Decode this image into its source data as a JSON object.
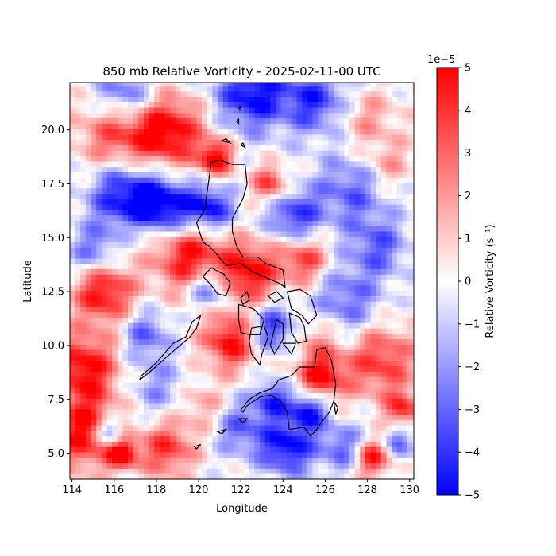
{
  "chart_data": {
    "type": "heatmap",
    "title": "850 mb Relative Vorticity - 2025-02-11-00 UTC",
    "xlabel": "Longitude",
    "ylabel": "Latitude",
    "xlim": [
      113.9,
      130.2
    ],
    "ylim": [
      3.8,
      22.2
    ],
    "x_ticks": [
      114,
      116,
      118,
      120,
      122,
      124,
      126,
      128,
      130
    ],
    "x_tick_labels": [
      "114",
      "116",
      "118",
      "120",
      "122",
      "124",
      "126",
      "128",
      "130"
    ],
    "y_ticks": [
      5.0,
      7.5,
      10.0,
      12.5,
      15.0,
      17.5,
      20.0
    ],
    "y_tick_labels": [
      "5.0",
      "7.5",
      "10.0",
      "12.5",
      "15.0",
      "17.5",
      "20.0"
    ],
    "colorbar": {
      "label": "Relative Vorticity (s⁻¹)",
      "multiplier_label": "1e−5",
      "range": [
        -5,
        5
      ],
      "ticks": [
        5,
        4,
        3,
        2,
        1,
        0,
        -1,
        -2,
        -3,
        -4,
        -5
      ],
      "tick_labels": [
        "5",
        "4",
        "3",
        "2",
        "1",
        "0",
        "−1",
        "−2",
        "−3",
        "−4",
        "−5"
      ],
      "colormap": "bwr",
      "colors": {
        "low": "#0000ff",
        "mid": "#ffffff",
        "high": "#ff0000"
      }
    },
    "grid_step_deg": 0.25,
    "field_features": [
      {
        "lon": 116.2,
        "lat": 19.8,
        "value": 4,
        "sigma": 1.3
      },
      {
        "lon": 118.6,
        "lat": 19.9,
        "value": 5,
        "sigma": 1.2
      },
      {
        "lon": 120.8,
        "lat": 18.7,
        "value": 5,
        "sigma": 0.6
      },
      {
        "lon": 122.5,
        "lat": 21.7,
        "value": -5,
        "sigma": 1.2
      },
      {
        "lon": 125.5,
        "lat": 21.4,
        "value": -4,
        "sigma": 1.1
      },
      {
        "lon": 116.5,
        "lat": 21.6,
        "value": -4,
        "sigma": 1.0
      },
      {
        "lon": 128.0,
        "lat": 20.5,
        "value": 2,
        "sigma": 1.0
      },
      {
        "lon": 116.5,
        "lat": 17.0,
        "value": -5,
        "sigma": 1.2
      },
      {
        "lon": 118.5,
        "lat": 16.4,
        "value": -5,
        "sigma": 1.0
      },
      {
        "lon": 120.5,
        "lat": 16.3,
        "value": -5,
        "sigma": 0.8
      },
      {
        "lon": 123.4,
        "lat": 17.5,
        "value": 4,
        "sigma": 0.6
      },
      {
        "lon": 124.5,
        "lat": 16.0,
        "value": -4,
        "sigma": 0.9
      },
      {
        "lon": 127.2,
        "lat": 17.2,
        "value": -3,
        "sigma": 1.2
      },
      {
        "lon": 129.0,
        "lat": 18.4,
        "value": 2,
        "sigma": 0.8
      },
      {
        "lon": 119.5,
        "lat": 14.3,
        "value": 5,
        "sigma": 1.2
      },
      {
        "lon": 122.4,
        "lat": 13.4,
        "value": 5,
        "sigma": 1.0
      },
      {
        "lon": 125.0,
        "lat": 14.0,
        "value": 4,
        "sigma": 0.8
      },
      {
        "lon": 128.5,
        "lat": 14.6,
        "value": -3,
        "sigma": 1.0
      },
      {
        "lon": 115.0,
        "lat": 14.3,
        "value": -3,
        "sigma": 0.8
      },
      {
        "lon": 115.5,
        "lat": 12.5,
        "value": 5,
        "sigma": 1.0
      },
      {
        "lon": 120.5,
        "lat": 12.6,
        "value": -4,
        "sigma": 0.6
      },
      {
        "lon": 127.0,
        "lat": 12.0,
        "value": -3,
        "sigma": 1.2
      },
      {
        "lon": 114.6,
        "lat": 9.0,
        "value": 5,
        "sigma": 1.1
      },
      {
        "lon": 114.7,
        "lat": 6.0,
        "value": 5,
        "sigma": 1.2
      },
      {
        "lon": 115.8,
        "lat": 6.0,
        "value": -5,
        "sigma": 0.5
      },
      {
        "lon": 116.4,
        "lat": 5.0,
        "value": 5,
        "sigma": 0.5
      },
      {
        "lon": 117.5,
        "lat": 10.5,
        "value": -3,
        "sigma": 0.8
      },
      {
        "lon": 121.5,
        "lat": 10.2,
        "value": 5,
        "sigma": 0.9
      },
      {
        "lon": 123.5,
        "lat": 10.8,
        "value": -4,
        "sigma": 0.8
      },
      {
        "lon": 125.5,
        "lat": 10.5,
        "value": 2,
        "sigma": 0.8
      },
      {
        "lon": 125.8,
        "lat": 8.6,
        "value": 5,
        "sigma": 0.8
      },
      {
        "lon": 128.6,
        "lat": 9.3,
        "value": 4,
        "sigma": 1.2
      },
      {
        "lon": 129.7,
        "lat": 7.0,
        "value": 4,
        "sigma": 0.6
      },
      {
        "lon": 129.5,
        "lat": 5.5,
        "value": -3,
        "sigma": 0.6
      },
      {
        "lon": 124.2,
        "lat": 5.3,
        "value": -5,
        "sigma": 0.9
      },
      {
        "lon": 126.8,
        "lat": 5.3,
        "value": -3,
        "sigma": 0.8
      },
      {
        "lon": 128.3,
        "lat": 4.8,
        "value": 5,
        "sigma": 0.6
      },
      {
        "lon": 122.0,
        "lat": 6.2,
        "value": -3,
        "sigma": 0.9
      },
      {
        "lon": 118.5,
        "lat": 5.2,
        "value": 4,
        "sigma": 0.9
      },
      {
        "lon": 118.0,
        "lat": 8.0,
        "value": -2,
        "sigma": 1.0
      },
      {
        "lon": 120.2,
        "lat": 7.2,
        "value": 2,
        "sigma": 0.8
      },
      {
        "lon": 123.5,
        "lat": 7.5,
        "value": -4,
        "sigma": 0.6
      },
      {
        "lon": 125.2,
        "lat": 7.0,
        "value": -5,
        "sigma": 0.6
      },
      {
        "lon": 117.0,
        "lat": 15.2,
        "value": 1,
        "sigma": 0.6
      }
    ],
    "coastlines": [
      [
        [
          120.6,
          18.5
        ],
        [
          121.0,
          18.6
        ],
        [
          121.6,
          18.4
        ],
        [
          122.2,
          18.4
        ],
        [
          122.3,
          17.5
        ],
        [
          122.1,
          16.8
        ],
        [
          121.6,
          15.9
        ],
        [
          121.6,
          15.3
        ],
        [
          121.8,
          14.6
        ],
        [
          122.1,
          14.1
        ],
        [
          122.8,
          14.1
        ],
        [
          123.2,
          13.8
        ],
        [
          124.0,
          13.5
        ],
        [
          124.1,
          12.7
        ],
        [
          123.8,
          12.9
        ],
        [
          123.3,
          13.1
        ],
        [
          122.6,
          13.4
        ],
        [
          122.0,
          13.8
        ],
        [
          121.3,
          13.7
        ],
        [
          120.8,
          14.3
        ],
        [
          120.5,
          14.6
        ],
        [
          120.2,
          14.8
        ],
        [
          119.9,
          15.7
        ],
        [
          120.3,
          16.3
        ],
        [
          120.4,
          17.1
        ],
        [
          120.6,
          18.5
        ]
      ],
      [
        [
          121.9,
          21.0
        ],
        [
          122.0,
          21.1
        ],
        [
          122.0,
          20.9
        ],
        [
          121.9,
          21.0
        ]
      ],
      [
        [
          121.8,
          20.4
        ],
        [
          121.9,
          20.5
        ],
        [
          121.9,
          20.3
        ],
        [
          121.8,
          20.4
        ]
      ],
      [
        [
          121.1,
          19.5
        ],
        [
          121.3,
          19.6
        ],
        [
          121.5,
          19.4
        ],
        [
          121.1,
          19.5
        ]
      ],
      [
        [
          122.0,
          19.3
        ],
        [
          122.1,
          19.4
        ],
        [
          122.2,
          19.2
        ],
        [
          122.0,
          19.3
        ]
      ],
      [
        [
          120.2,
          13.2
        ],
        [
          120.6,
          13.6
        ],
        [
          121.2,
          13.3
        ],
        [
          121.5,
          12.9
        ],
        [
          121.3,
          12.3
        ],
        [
          120.9,
          12.4
        ],
        [
          120.6,
          12.8
        ],
        [
          120.2,
          13.2
        ]
      ],
      [
        [
          119.4,
          10.4
        ],
        [
          119.7,
          11.1
        ],
        [
          120.1,
          11.4
        ],
        [
          119.9,
          10.8
        ],
        [
          119.6,
          10.4
        ],
        [
          119.0,
          9.9
        ],
        [
          118.3,
          9.3
        ],
        [
          117.6,
          8.7
        ],
        [
          117.2,
          8.4
        ],
        [
          117.3,
          8.6
        ],
        [
          118.0,
          9.2
        ],
        [
          118.8,
          10.1
        ],
        [
          119.4,
          10.4
        ]
      ],
      [
        [
          122.0,
          12.2
        ],
        [
          122.3,
          12.5
        ],
        [
          122.4,
          12.1
        ],
        [
          122.1,
          11.9
        ],
        [
          122.0,
          12.2
        ]
      ],
      [
        [
          123.3,
          12.3
        ],
        [
          123.7,
          12.5
        ],
        [
          124.0,
          12.2
        ],
        [
          123.6,
          12.0
        ],
        [
          123.3,
          12.3
        ]
      ],
      [
        [
          124.2,
          12.5
        ],
        [
          124.8,
          12.6
        ],
        [
          125.3,
          12.3
        ],
        [
          125.6,
          11.4
        ],
        [
          125.2,
          11.0
        ],
        [
          124.9,
          11.4
        ],
        [
          124.4,
          11.7
        ],
        [
          124.2,
          12.5
        ]
      ],
      [
        [
          124.3,
          11.5
        ],
        [
          124.8,
          11.3
        ],
        [
          125.0,
          10.9
        ],
        [
          125.1,
          10.2
        ],
        [
          124.7,
          10.1
        ],
        [
          124.4,
          10.6
        ],
        [
          124.3,
          11.5
        ]
      ],
      [
        [
          121.9,
          11.9
        ],
        [
          122.6,
          11.7
        ],
        [
          123.1,
          11.2
        ],
        [
          122.9,
          10.5
        ],
        [
          122.4,
          10.5
        ],
        [
          122.0,
          10.6
        ],
        [
          121.9,
          11.2
        ],
        [
          121.9,
          11.9
        ]
      ],
      [
        [
          122.5,
          10.8
        ],
        [
          123.1,
          10.9
        ],
        [
          123.3,
          10.4
        ],
        [
          123.0,
          9.6
        ],
        [
          122.9,
          9.1
        ],
        [
          122.5,
          9.6
        ],
        [
          122.4,
          10.2
        ],
        [
          122.5,
          10.8
        ]
      ],
      [
        [
          123.7,
          11.2
        ],
        [
          124.0,
          11.0
        ],
        [
          124.0,
          10.3
        ],
        [
          123.6,
          9.6
        ],
        [
          123.4,
          10.0
        ],
        [
          123.7,
          11.2
        ]
      ],
      [
        [
          124.0,
          10.1
        ],
        [
          124.6,
          10.1
        ],
        [
          124.4,
          9.6
        ],
        [
          124.0,
          10.1
        ]
      ],
      [
        [
          125.6,
          9.8
        ],
        [
          126.0,
          9.9
        ],
        [
          126.3,
          9.3
        ],
        [
          126.5,
          8.2
        ],
        [
          126.4,
          7.4
        ],
        [
          126.2,
          6.9
        ],
        [
          125.8,
          6.4
        ],
        [
          125.6,
          6.1
        ],
        [
          125.3,
          5.8
        ],
        [
          125.0,
          6.2
        ],
        [
          124.3,
          6.1
        ],
        [
          124.2,
          6.9
        ],
        [
          123.9,
          7.4
        ],
        [
          123.4,
          7.7
        ],
        [
          122.9,
          7.6
        ],
        [
          122.3,
          7.2
        ],
        [
          122.1,
          6.9
        ],
        [
          122.0,
          7.0
        ],
        [
          122.4,
          7.5
        ],
        [
          122.9,
          7.8
        ],
        [
          123.5,
          8.0
        ],
        [
          123.8,
          8.4
        ],
        [
          124.4,
          8.6
        ],
        [
          124.8,
          9.0
        ],
        [
          125.5,
          9.0
        ],
        [
          125.6,
          9.8
        ]
      ],
      [
        [
          121.9,
          6.6
        ],
        [
          122.3,
          6.6
        ],
        [
          122.1,
          6.4
        ],
        [
          121.9,
          6.6
        ]
      ],
      [
        [
          120.9,
          6.0
        ],
        [
          121.3,
          6.1
        ],
        [
          121.1,
          5.9
        ],
        [
          120.9,
          6.0
        ]
      ],
      [
        [
          119.8,
          5.3
        ],
        [
          120.1,
          5.4
        ],
        [
          119.9,
          5.2
        ],
        [
          119.8,
          5.3
        ]
      ],
      [
        [
          126.4,
          7.4
        ],
        [
          126.6,
          7.1
        ],
        [
          126.5,
          6.8
        ],
        [
          126.4,
          7.4
        ]
      ]
    ]
  }
}
